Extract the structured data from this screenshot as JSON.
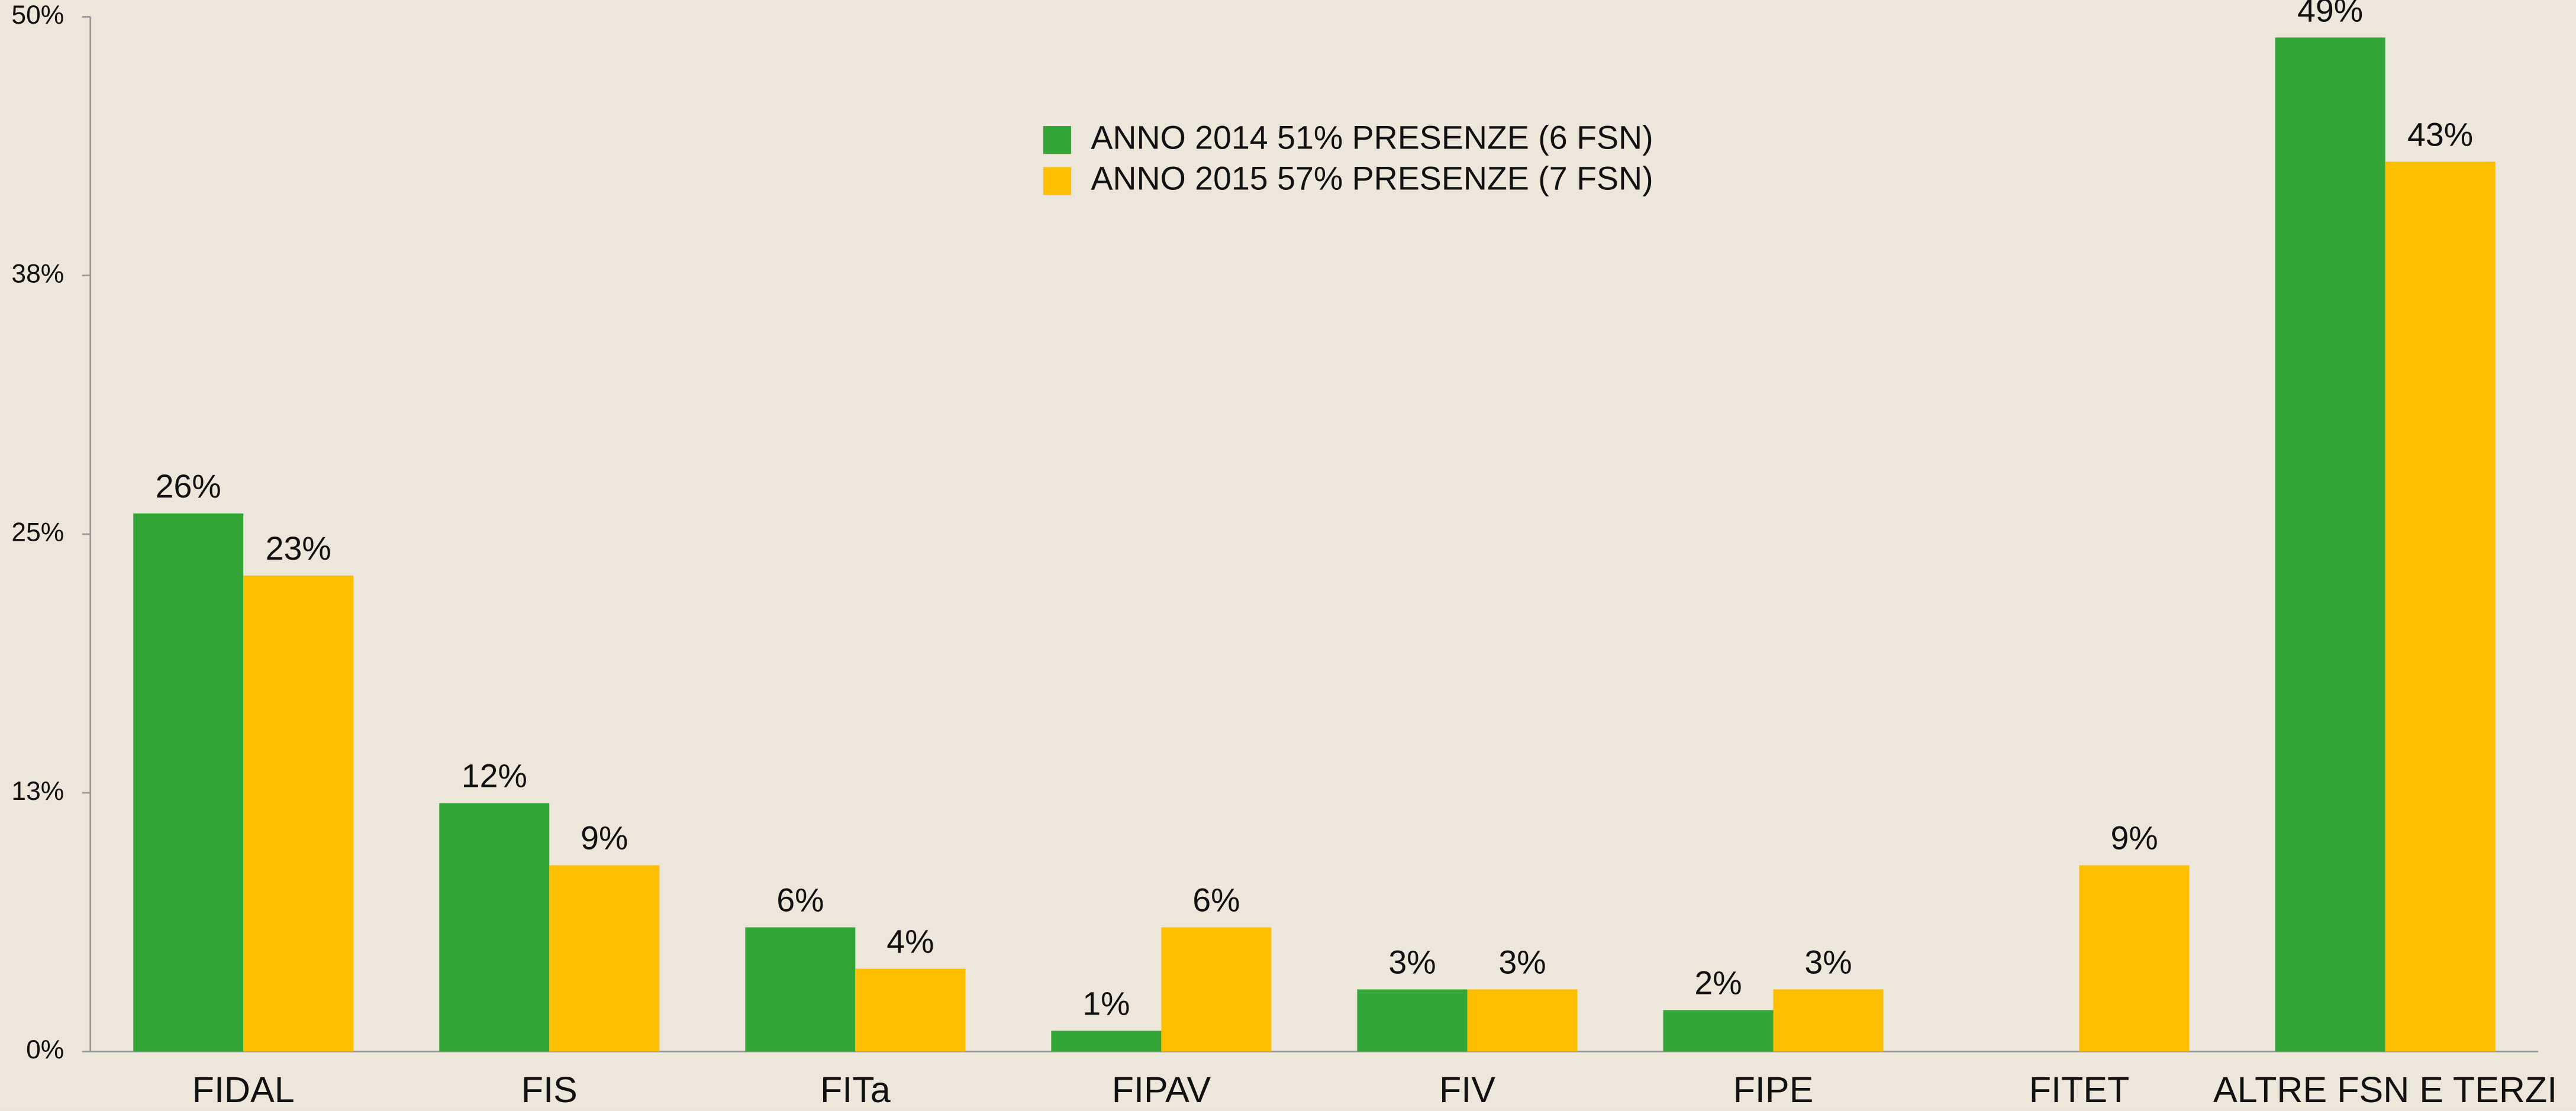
{
  "chart_data": {
    "type": "bar",
    "categories": [
      "FIDAL",
      "FIS",
      "FITa",
      "FIPAV",
      "FIV",
      "FIPE",
      "FITET",
      "ALTRE FSN E TERZI"
    ],
    "series": [
      {
        "name": "ANNO 2014 51% PRESENZE (6 FSN)",
        "color": "#33a637",
        "values": [
          26,
          12,
          6,
          1,
          3,
          2,
          null,
          49
        ],
        "value_labels": [
          "26%",
          "12%",
          "6%",
          "1%",
          "3%",
          "2%",
          null,
          "49%"
        ]
      },
      {
        "name": "ANNO 2015 57% PRESENZE (7 FSN)",
        "color": "#fdbf00",
        "values": [
          23,
          9,
          4,
          6,
          3,
          3,
          9,
          43
        ],
        "value_labels": [
          "23%",
          "9%",
          "4%",
          "6%",
          "3%",
          "3%",
          "9%",
          "43%"
        ]
      }
    ],
    "ylim": [
      0,
      50
    ],
    "yticks": [
      {
        "value": 0,
        "label": "0%"
      },
      {
        "value": 12.5,
        "label": "13%"
      },
      {
        "value": 25,
        "label": "25%"
      },
      {
        "value": 37.5,
        "label": "38%"
      },
      {
        "value": 50,
        "label": "50%"
      }
    ],
    "grid": false,
    "legend": "top"
  }
}
